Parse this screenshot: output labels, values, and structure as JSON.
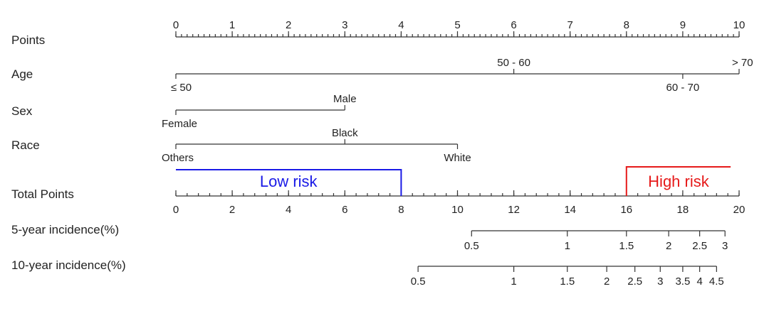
{
  "chart_data": {
    "type": "nomogram",
    "rows": [
      {
        "key": "points",
        "label": "Points",
        "scale": "points",
        "ticks": [
          {
            "v": 0,
            "label": "0"
          },
          {
            "v": 1,
            "label": "1"
          },
          {
            "v": 2,
            "label": "2"
          },
          {
            "v": 3,
            "label": "3"
          },
          {
            "v": 4,
            "label": "4"
          },
          {
            "v": 5,
            "label": "5"
          },
          {
            "v": 6,
            "label": "6"
          },
          {
            "v": 7,
            "label": "7"
          },
          {
            "v": 8,
            "label": "8"
          },
          {
            "v": 9,
            "label": "9"
          },
          {
            "v": 10,
            "label": "10"
          }
        ],
        "minor_step": 0.1
      },
      {
        "key": "age",
        "label": "Age",
        "scale": "points",
        "ticks": [
          {
            "v": 0,
            "label": "≤ 50",
            "side": "below"
          },
          {
            "v": 6,
            "label": "50 - 60",
            "side": "above"
          },
          {
            "v": 9,
            "label": "60 - 70",
            "side": "below"
          },
          {
            "v": 10,
            "label": "> 70",
            "side": "above"
          }
        ]
      },
      {
        "key": "sex",
        "label": "Sex",
        "scale": "points",
        "ticks": [
          {
            "v": 0,
            "label": "Female",
            "side": "below"
          },
          {
            "v": 3,
            "label": "Male",
            "side": "above"
          }
        ]
      },
      {
        "key": "race",
        "label": "Race",
        "scale": "points",
        "ticks": [
          {
            "v": 0,
            "label": "Others",
            "side": "below"
          },
          {
            "v": 3,
            "label": "Black",
            "side": "above"
          },
          {
            "v": 5,
            "label": "White",
            "side": "below"
          }
        ]
      },
      {
        "key": "total",
        "label": "Total Points",
        "scale": "total",
        "ticks": [
          {
            "v": 0,
            "label": "0"
          },
          {
            "v": 2,
            "label": "2"
          },
          {
            "v": 4,
            "label": "4"
          },
          {
            "v": 6,
            "label": "6"
          },
          {
            "v": 8,
            "label": "8"
          },
          {
            "v": 10,
            "label": "10"
          },
          {
            "v": 12,
            "label": "12"
          },
          {
            "v": 14,
            "label": "14"
          },
          {
            "v": 16,
            "label": "16"
          },
          {
            "v": 18,
            "label": "18"
          },
          {
            "v": 20,
            "label": "20"
          }
        ],
        "minor_step": 0.4
      },
      {
        "key": "inc5",
        "label": "5-year incidence(%)",
        "scale": "total",
        "ticks": [
          {
            "v": 10.5,
            "label": "0.5"
          },
          {
            "v": 13.9,
            "label": "1"
          },
          {
            "v": 16.0,
            "label": "1.5"
          },
          {
            "v": 17.5,
            "label": "2"
          },
          {
            "v": 18.6,
            "label": "2.5"
          },
          {
            "v": 19.5,
            "label": "3"
          }
        ]
      },
      {
        "key": "inc10",
        "label": "10-year incidence(%)",
        "scale": "total",
        "ticks": [
          {
            "v": 8.6,
            "label": "0.5"
          },
          {
            "v": 12.0,
            "label": "1"
          },
          {
            "v": 13.9,
            "label": "1.5"
          },
          {
            "v": 15.3,
            "label": "2"
          },
          {
            "v": 16.3,
            "label": "2.5"
          },
          {
            "v": 17.2,
            "label": "3"
          },
          {
            "v": 18.0,
            "label": "3.5"
          },
          {
            "v": 18.6,
            "label": "4"
          },
          {
            "v": 19.2,
            "label": "4.5"
          }
        ]
      }
    ],
    "risk_groups": [
      {
        "label": "Low risk",
        "from": 0,
        "to": 8,
        "color": "#1a1ae6"
      },
      {
        "label": "High risk",
        "from": 16,
        "to": 19.7,
        "color": "#e61a1a"
      }
    ]
  }
}
